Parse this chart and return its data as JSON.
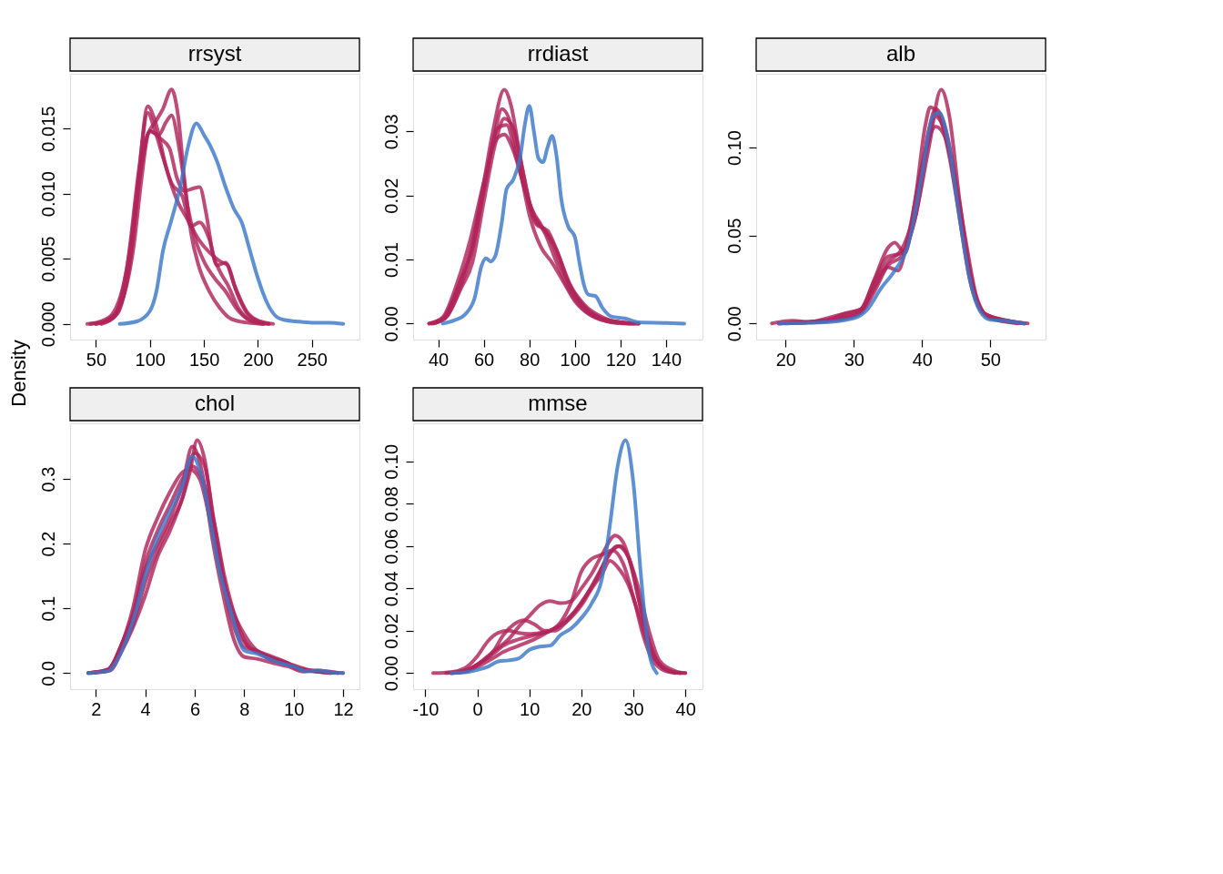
{
  "chart_data": [
    {
      "type": "line",
      "title": "rrsyst",
      "ylabel": "Density",
      "legend": false,
      "grid": false,
      "marker": "none",
      "xlim": [
        26,
        294
      ],
      "xticks": [
        50,
        100,
        150,
        200,
        250
      ],
      "ylim": [
        -0.0012,
        0.0192
      ],
      "yticks": [
        {
          "value": 0,
          "label": "0.000"
        },
        0.005,
        {
          "value": 0.01,
          "label": "0.010"
        },
        0.015
      ],
      "series": [
        {
          "color": "#3a78c8",
          "x": [
            72,
            88,
            100,
            106,
            112,
            120,
            128,
            135,
            143,
            150,
            155,
            162,
            170,
            178,
            185,
            192,
            200,
            208,
            218,
            225,
            235,
            250,
            265,
            279
          ],
          "values": [
            0,
            0.0002,
            0.001,
            0.0025,
            0.0056,
            0.008,
            0.0105,
            0.0135,
            0.0154,
            0.0145,
            0.0138,
            0.0125,
            0.0105,
            0.0088,
            0.0078,
            0.0058,
            0.0035,
            0.0017,
            0.0005,
            0.0003,
            0.0002,
            0.0001,
            0.0001,
            0
          ]
        },
        {
          "color": "#b0245a",
          "x": [
            42,
            60,
            75,
            85,
            92,
            98,
            105,
            112,
            120,
            126,
            132,
            138,
            145,
            155,
            165,
            175,
            190,
            205
          ],
          "values": [
            0,
            0.0002,
            0.002,
            0.006,
            0.011,
            0.0145,
            0.0155,
            0.0165,
            0.018,
            0.016,
            0.011,
            0.007,
            0.0045,
            0.0025,
            0.0012,
            0.0004,
            0.0001,
            0
          ]
        },
        {
          "color": "#b0245a",
          "x": [
            50,
            65,
            78,
            88,
            98,
            105,
            115,
            125,
            135,
            145,
            155,
            165,
            172,
            180,
            190,
            200,
            210
          ],
          "values": [
            0,
            0.0004,
            0.003,
            0.01,
            0.0167,
            0.0155,
            0.012,
            0.0095,
            0.008,
            0.0065,
            0.0055,
            0.0048,
            0.0045,
            0.0025,
            0.0008,
            0.0002,
            0
          ]
        },
        {
          "color": "#b0245a",
          "x": [
            55,
            70,
            82,
            92,
            100,
            108,
            115,
            120,
            127,
            135,
            142,
            150,
            160,
            170,
            180,
            192,
            205
          ],
          "values": [
            0,
            0.0008,
            0.005,
            0.012,
            0.0148,
            0.0145,
            0.0155,
            0.016,
            0.0135,
            0.009,
            0.0065,
            0.0048,
            0.0035,
            0.0025,
            0.0012,
            0.0003,
            0
          ]
        },
        {
          "color": "#b0245a",
          "x": [
            50,
            68,
            82,
            92,
            100,
            110,
            118,
            125,
            132,
            140,
            146,
            152,
            158,
            165,
            172,
            182,
            195,
            210
          ],
          "values": [
            0,
            0.0008,
            0.006,
            0.0125,
            0.0148,
            0.0142,
            0.0135,
            0.0112,
            0.0102,
            0.0104,
            0.0105,
            0.0085,
            0.0055,
            0.004,
            0.003,
            0.0012,
            0.0002,
            0
          ]
        },
        {
          "color": "#b0245a",
          "x": [
            45,
            62,
            78,
            90,
            98,
            104,
            112,
            120,
            130,
            138,
            146,
            155,
            162,
            170,
            178,
            190,
            202,
            214
          ],
          "values": [
            0,
            0.0005,
            0.004,
            0.012,
            0.0162,
            0.015,
            0.0128,
            0.0108,
            0.0098,
            0.0075,
            0.0078,
            0.0065,
            0.0045,
            0.0047,
            0.003,
            0.0009,
            0.0002,
            0
          ]
        }
      ]
    },
    {
      "type": "line",
      "title": "rrdiast",
      "legend": false,
      "grid": false,
      "marker": "none",
      "xlim": [
        29,
        156
      ],
      "xticks": [
        40,
        60,
        80,
        100,
        120,
        140
      ],
      "ylim": [
        -0.0025,
        0.039
      ],
      "yticks": [
        {
          "value": 0,
          "label": "0.00"
        },
        0.01,
        0.02,
        0.03
      ],
      "series": [
        {
          "color": "#3a78c8",
          "x": [
            42,
            47,
            52,
            56,
            59,
            61,
            63,
            65,
            68,
            70,
            73,
            76,
            78,
            80,
            82,
            84,
            86,
            88,
            90,
            92,
            94,
            97,
            100,
            102,
            104,
            106,
            109,
            112,
            116,
            122,
            128,
            140,
            148
          ],
          "values": [
            0,
            0.0005,
            0.0015,
            0.004,
            0.009,
            0.0102,
            0.0097,
            0.0105,
            0.016,
            0.021,
            0.0225,
            0.026,
            0.031,
            0.034,
            0.03,
            0.0258,
            0.0252,
            0.0275,
            0.0293,
            0.026,
            0.0195,
            0.0152,
            0.0135,
            0.0095,
            0.006,
            0.0045,
            0.0043,
            0.0025,
            0.0011,
            0.0008,
            0.0002,
            0.0001,
            0
          ]
        },
        {
          "color": "#b0245a",
          "x": [
            36,
            42,
            48,
            54,
            60,
            64,
            69,
            72,
            76,
            80,
            85,
            90,
            95,
            100,
            106,
            112,
            120,
            128
          ],
          "values": [
            0,
            0.0008,
            0.005,
            0.011,
            0.022,
            0.03,
            0.0365,
            0.034,
            0.026,
            0.019,
            0.0155,
            0.0125,
            0.008,
            0.0045,
            0.002,
            0.0008,
            0.0002,
            0
          ]
        },
        {
          "color": "#b0245a",
          "x": [
            37,
            43,
            49,
            55,
            60,
            64,
            68,
            72,
            76,
            80,
            85,
            90,
            95,
            100,
            106,
            114,
            124
          ],
          "values": [
            0,
            0.001,
            0.006,
            0.012,
            0.021,
            0.028,
            0.0335,
            0.031,
            0.024,
            0.017,
            0.012,
            0.0095,
            0.0065,
            0.0035,
            0.0015,
            0.0004,
            0
          ]
        },
        {
          "color": "#b0245a",
          "x": [
            38,
            44,
            50,
            55,
            60,
            65,
            69,
            73,
            77,
            82,
            87,
            92,
            97,
            102,
            110,
            120,
            126
          ],
          "values": [
            0,
            0.0012,
            0.0055,
            0.0095,
            0.019,
            0.028,
            0.032,
            0.0305,
            0.024,
            0.0165,
            0.0145,
            0.0115,
            0.0065,
            0.0035,
            0.001,
            0.0002,
            0
          ]
        },
        {
          "color": "#b0245a",
          "x": [
            36,
            42,
            48,
            54,
            60,
            65,
            69,
            73,
            78,
            83,
            88,
            93,
            98,
            104,
            112,
            122,
            128
          ],
          "values": [
            0,
            0.001,
            0.006,
            0.013,
            0.022,
            0.0285,
            0.0295,
            0.027,
            0.021,
            0.0155,
            0.0145,
            0.0105,
            0.006,
            0.003,
            0.001,
            0.0001,
            0
          ]
        },
        {
          "color": "#b0245a",
          "x": [
            37,
            43,
            49,
            55,
            61,
            66,
            70,
            74,
            78,
            82,
            87,
            92,
            97,
            103,
            110,
            118,
            125
          ],
          "values": [
            0,
            0.0008,
            0.005,
            0.0115,
            0.0225,
            0.0305,
            0.031,
            0.0265,
            0.021,
            0.017,
            0.014,
            0.0095,
            0.0055,
            0.0025,
            0.0008,
            0.0001,
            0
          ]
        }
      ]
    },
    {
      "type": "line",
      "title": "alb",
      "legend": false,
      "grid": false,
      "marker": "none",
      "xlim": [
        15.7,
        58.1
      ],
      "xticks": [
        20,
        30,
        40,
        50
      ],
      "ylim": [
        -0.0092,
        0.142
      ],
      "yticks": [
        {
          "value": 0,
          "label": "0.00"
        },
        0.05,
        {
          "value": 0.1,
          "label": "0.10"
        }
      ],
      "series": [
        {
          "color": "#3a78c8",
          "x": [
            19,
            25,
            30,
            32,
            34,
            36,
            38,
            40,
            41.5,
            42.5,
            44,
            45.5,
            47,
            48.5,
            50,
            52,
            55
          ],
          "values": [
            0,
            0.0005,
            0.003,
            0.008,
            0.02,
            0.03,
            0.045,
            0.085,
            0.117,
            0.12,
            0.1,
            0.06,
            0.025,
            0.007,
            0.002,
            0.0015,
            0
          ]
        },
        {
          "color": "#b0245a",
          "x": [
            18,
            21,
            24,
            28,
            31,
            33,
            35,
            37,
            39,
            41,
            42.8,
            44,
            45.5,
            47,
            49,
            52,
            55.5
          ],
          "values": [
            0,
            0.0015,
            0.0005,
            0.003,
            0.006,
            0.018,
            0.033,
            0.038,
            0.06,
            0.1,
            0.133,
            0.118,
            0.07,
            0.03,
            0.006,
            0.002,
            0
          ]
        },
        {
          "color": "#b0245a",
          "x": [
            19,
            23,
            28,
            31,
            33,
            35,
            36,
            37.5,
            39,
            40.5,
            41.2,
            42.5,
            44,
            45.5,
            47,
            49,
            53,
            55
          ],
          "values": [
            0,
            0.0005,
            0.005,
            0.008,
            0.025,
            0.043,
            0.046,
            0.04,
            0.07,
            0.113,
            0.123,
            0.118,
            0.095,
            0.06,
            0.025,
            0.006,
            0.001,
            0
          ]
        },
        {
          "color": "#b0245a",
          "x": [
            20,
            25,
            29,
            31,
            33,
            35,
            36.5,
            38,
            40,
            42,
            43.5,
            45,
            46.5,
            48,
            50,
            54
          ],
          "values": [
            0,
            0.001,
            0.004,
            0.007,
            0.02,
            0.032,
            0.03,
            0.05,
            0.09,
            0.112,
            0.105,
            0.075,
            0.04,
            0.013,
            0.003,
            0
          ]
        },
        {
          "color": "#b0245a",
          "x": [
            19,
            24,
            28,
            31,
            33,
            35,
            37,
            39,
            41,
            42,
            43.5,
            45,
            46.5,
            48,
            50,
            55
          ],
          "values": [
            0,
            0.001,
            0.002,
            0.006,
            0.022,
            0.035,
            0.042,
            0.065,
            0.11,
            0.122,
            0.11,
            0.08,
            0.045,
            0.015,
            0.003,
            0
          ]
        },
        {
          "color": "#b0245a",
          "x": [
            19,
            26,
            29,
            31,
            33,
            35,
            37,
            39,
            41,
            41.8,
            43,
            44.5,
            46,
            47.5,
            49.5,
            52,
            55
          ],
          "values": [
            0,
            0.002,
            0.006,
            0.008,
            0.024,
            0.038,
            0.04,
            0.06,
            0.105,
            0.118,
            0.113,
            0.088,
            0.05,
            0.02,
            0.004,
            0.002,
            0
          ]
        }
      ]
    },
    {
      "type": "line",
      "title": "chol",
      "legend": false,
      "grid": false,
      "marker": "none",
      "xlim": [
        0.96,
        12.66
      ],
      "xticks": [
        2,
        4,
        6,
        8,
        10,
        12
      ],
      "ylim": [
        -0.025,
        0.386
      ],
      "yticks": [
        {
          "value": 0,
          "label": "0.0"
        },
        0.1,
        0.2,
        0.3
      ],
      "series": [
        {
          "color": "#3a78c8",
          "x": [
            1.7,
            2.5,
            3,
            3.5,
            4,
            4.5,
            5,
            5.5,
            5.9,
            6.3,
            6.7,
            7,
            7.5,
            8,
            8.5,
            9,
            9.5,
            10,
            10.5,
            11,
            11.5,
            12
          ],
          "values": [
            0,
            0.003,
            0.03,
            0.08,
            0.15,
            0.21,
            0.25,
            0.29,
            0.335,
            0.3,
            0.22,
            0.16,
            0.09,
            0.035,
            0.03,
            0.022,
            0.015,
            0.01,
            0.003,
            0.004,
            0.001,
            0
          ]
        },
        {
          "color": "#b0245a",
          "x": [
            1.7,
            2.5,
            3,
            3.5,
            4,
            4.5,
            5,
            5.5,
            5.8,
            6.1,
            6.4,
            6.8,
            7.2,
            7.6,
            8,
            8.5,
            9,
            9.6,
            10.2,
            11,
            11.5
          ],
          "values": [
            0,
            0.004,
            0.035,
            0.075,
            0.14,
            0.19,
            0.23,
            0.27,
            0.31,
            0.36,
            0.33,
            0.22,
            0.13,
            0.07,
            0.04,
            0.035,
            0.022,
            0.017,
            0.006,
            0.003,
            0
          ]
        },
        {
          "color": "#b0245a",
          "x": [
            1.7,
            2.5,
            3,
            3.5,
            4,
            4.5,
            5,
            5.5,
            5.9,
            6.3,
            6.7,
            7.1,
            7.6,
            8,
            8.5,
            9.2,
            9.8,
            10.4,
            11,
            11.8
          ],
          "values": [
            0,
            0.005,
            0.04,
            0.09,
            0.16,
            0.2,
            0.24,
            0.29,
            0.35,
            0.31,
            0.21,
            0.13,
            0.05,
            0.025,
            0.022,
            0.015,
            0.01,
            0.002,
            0.004,
            0
          ]
        },
        {
          "color": "#b0245a",
          "x": [
            1.8,
            2.5,
            3,
            3.5,
            4,
            4.5,
            5,
            5.5,
            5.8,
            6.2,
            6.6,
            7,
            7.5,
            8,
            8.5,
            9,
            9.7,
            10.3,
            11,
            12
          ],
          "values": [
            0,
            0.006,
            0.04,
            0.1,
            0.19,
            0.24,
            0.28,
            0.31,
            0.315,
            0.3,
            0.24,
            0.17,
            0.1,
            0.06,
            0.035,
            0.025,
            0.016,
            0.005,
            0.002,
            0
          ]
        },
        {
          "color": "#b0245a",
          "x": [
            1.7,
            2.6,
            3,
            3.5,
            4,
            4.5,
            5,
            5.5,
            5.9,
            6.3,
            6.8,
            7.2,
            7.7,
            8.2,
            8.8,
            9.5,
            10.2,
            11,
            11.8
          ],
          "values": [
            0,
            0.006,
            0.04,
            0.09,
            0.17,
            0.22,
            0.26,
            0.3,
            0.32,
            0.3,
            0.23,
            0.15,
            0.08,
            0.04,
            0.028,
            0.018,
            0.008,
            0.002,
            0
          ]
        },
        {
          "color": "#b0245a",
          "x": [
            1.8,
            2.6,
            3,
            3.5,
            4,
            4.5,
            5,
            5.5,
            6,
            6.4,
            6.8,
            7.2,
            7.7,
            8.2,
            8.8,
            9.5,
            10,
            10.8,
            11.5
          ],
          "values": [
            0,
            0.004,
            0.03,
            0.07,
            0.12,
            0.18,
            0.22,
            0.27,
            0.34,
            0.32,
            0.23,
            0.14,
            0.07,
            0.04,
            0.03,
            0.02,
            0.012,
            0.003,
            0
          ]
        }
      ]
    },
    {
      "type": "line",
      "title": "mmse",
      "legend": false,
      "grid": false,
      "marker": "none",
      "xlim": [
        -12.35,
        43.3
      ],
      "xticks": [
        -10,
        0,
        10,
        20,
        30,
        40
      ],
      "ylim": [
        -0.0076,
        0.118
      ],
      "yticks": [
        {
          "value": 0,
          "label": "0.00"
        },
        0.02,
        0.04,
        0.06,
        0.08,
        {
          "value": 0.1,
          "label": "0.10"
        }
      ],
      "series": [
        {
          "color": "#3a78c8",
          "x": [
            -5,
            -2,
            0,
            2,
            4,
            6,
            8,
            10,
            12,
            14,
            16,
            18,
            20,
            22,
            24,
            25.5,
            27,
            28.5,
            30,
            31.5,
            33,
            34.5
          ],
          "values": [
            0,
            0.0005,
            0.0015,
            0.003,
            0.0055,
            0.006,
            0.007,
            0.011,
            0.0125,
            0.013,
            0.018,
            0.021,
            0.026,
            0.033,
            0.045,
            0.07,
            0.098,
            0.11,
            0.09,
            0.045,
            0.01,
            0
          ]
        },
        {
          "color": "#b0245a",
          "x": [
            -8.5,
            -5,
            -2,
            0,
            2,
            4,
            6,
            8,
            10,
            12,
            14,
            16,
            18,
            20,
            22,
            24,
            26,
            28,
            30,
            32,
            34,
            37,
            40
          ],
          "values": [
            0,
            0.0005,
            0.003,
            0.008,
            0.015,
            0.019,
            0.02,
            0.019,
            0.0185,
            0.019,
            0.02,
            0.024,
            0.033,
            0.048,
            0.054,
            0.056,
            0.058,
            0.052,
            0.036,
            0.017,
            0.005,
            0.0005,
            0
          ]
        },
        {
          "color": "#b0245a",
          "x": [
            -6,
            -3,
            0,
            2,
            4,
            6,
            8,
            10,
            12,
            14,
            16,
            18,
            20,
            22,
            24,
            26.5,
            28,
            30,
            32,
            34,
            37,
            39
          ],
          "values": [
            0,
            0.001,
            0.004,
            0.008,
            0.012,
            0.016,
            0.022,
            0.027,
            0.032,
            0.034,
            0.033,
            0.034,
            0.04,
            0.047,
            0.056,
            0.065,
            0.062,
            0.047,
            0.024,
            0.008,
            0.001,
            0
          ]
        },
        {
          "color": "#b0245a",
          "x": [
            -5,
            -2,
            0,
            3,
            5,
            7,
            9,
            11,
            13,
            15,
            17,
            19,
            21,
            23,
            25,
            27,
            29,
            31,
            33,
            36,
            39
          ],
          "values": [
            0,
            0.001,
            0.004,
            0.01,
            0.018,
            0.023,
            0.025,
            0.023,
            0.02,
            0.02,
            0.024,
            0.03,
            0.037,
            0.045,
            0.055,
            0.06,
            0.055,
            0.035,
            0.015,
            0.002,
            0
          ]
        },
        {
          "color": "#b0245a",
          "x": [
            -5,
            -2,
            0,
            3,
            5,
            8,
            11,
            14,
            17,
            20,
            22,
            24,
            25.5,
            27,
            29,
            31,
            33,
            35,
            38
          ],
          "values": [
            0,
            0.001,
            0.003,
            0.007,
            0.01,
            0.013,
            0.016,
            0.02,
            0.024,
            0.032,
            0.04,
            0.047,
            0.053,
            0.05,
            0.042,
            0.028,
            0.012,
            0.004,
            0
          ]
        },
        {
          "color": "#b0245a",
          "x": [
            -5,
            -2,
            0,
            3,
            5,
            8,
            11,
            14,
            17,
            20,
            22,
            24,
            26,
            27.5,
            29,
            31,
            33,
            35,
            38,
            40
          ],
          "values": [
            0,
            0.001,
            0.004,
            0.009,
            0.013,
            0.016,
            0.018,
            0.02,
            0.025,
            0.033,
            0.041,
            0.05,
            0.058,
            0.06,
            0.055,
            0.04,
            0.02,
            0.006,
            0.001,
            0
          ]
        }
      ]
    }
  ]
}
